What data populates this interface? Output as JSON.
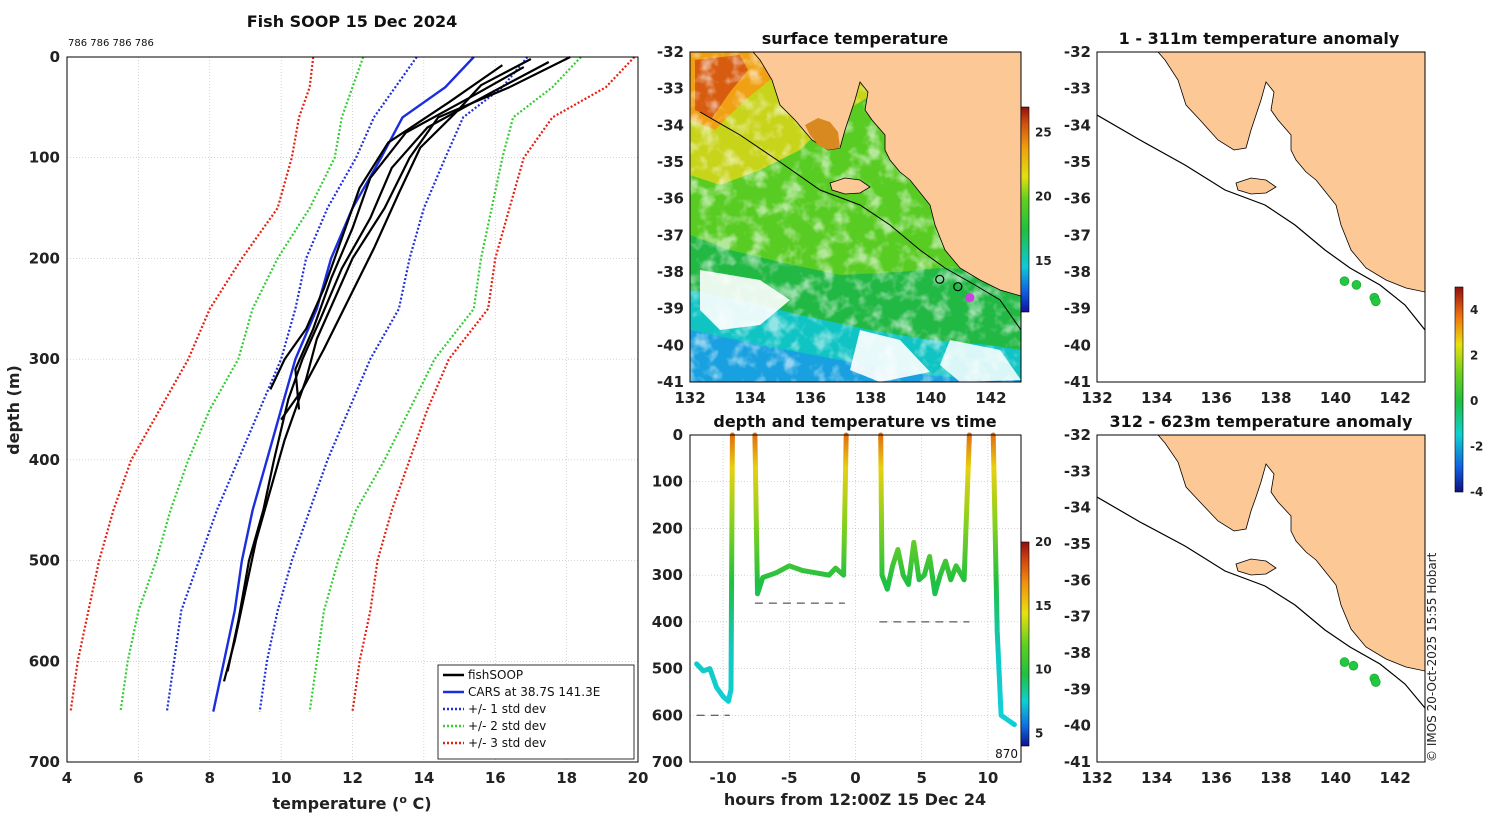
{
  "colors": {
    "fishsoop": "#000000",
    "cars": "#1a2ee0",
    "std1": "#1f2fd8",
    "std2": "#33cc33",
    "std3": "#e52010",
    "land": "#fbc896",
    "frame": "#000000"
  },
  "chart_data": [
    {
      "id": "profile",
      "type": "line",
      "title": "Fish SOOP 15 Dec 2024",
      "ids_label": "786 786 786 786",
      "xlabel": "temperature (",
      "xlabel_sup": "o",
      "xlabel_tail": " C)",
      "ylabel": "depth (m)",
      "xlim": [
        4,
        20
      ],
      "ylim": [
        0,
        700
      ],
      "xticks": [
        "4",
        "6",
        "8",
        "10",
        "12",
        "14",
        "16",
        "18",
        "20"
      ],
      "yticks": [
        "0",
        "100",
        "200",
        "300",
        "400",
        "500",
        "600",
        "700"
      ],
      "legend": [
        "fishSOOP",
        "CARS at 38.7S 141.3E",
        "+/- 1 std dev",
        "+/- 2 std dev",
        "+/- 3 std dev"
      ],
      "depths": [
        0,
        30,
        60,
        100,
        150,
        200,
        250,
        300,
        350,
        400,
        450,
        500,
        550,
        600,
        650
      ],
      "cars": [
        15.4,
        14.6,
        13.4,
        12.8,
        12.0,
        11.4,
        11.0,
        10.4,
        10.0,
        9.6,
        9.2,
        8.9,
        8.7,
        8.4,
        8.1
      ],
      "std1_lo": [
        13.8,
        13.2,
        12.6,
        12.1,
        11.3,
        10.7,
        10.4,
        10.0,
        9.4,
        8.8,
        8.2,
        7.7,
        7.2,
        7.0,
        6.8
      ],
      "std1_hi": [
        16.9,
        16.2,
        15.1,
        14.6,
        14.0,
        13.6,
        13.3,
        12.5,
        11.9,
        11.3,
        10.8,
        10.3,
        9.9,
        9.6,
        9.4
      ],
      "std2_lo": [
        12.3,
        12.0,
        11.7,
        11.5,
        10.8,
        9.9,
        9.2,
        8.8,
        8.0,
        7.4,
        6.9,
        6.5,
        6.0,
        5.7,
        5.5
      ],
      "std2_hi": [
        18.4,
        17.6,
        16.5,
        16.2,
        15.9,
        15.6,
        15.4,
        14.3,
        13.6,
        12.9,
        12.1,
        11.6,
        11.2,
        11.0,
        10.8
      ],
      "std3_lo": [
        10.9,
        10.8,
        10.5,
        10.3,
        9.9,
        8.9,
        8.0,
        7.4,
        6.6,
        5.8,
        5.3,
        4.9,
        4.6,
        4.3,
        4.1
      ],
      "std3_hi": [
        19.9,
        19.1,
        17.6,
        16.8,
        16.4,
        16.0,
        15.8,
        14.7,
        14.1,
        13.6,
        13.1,
        12.7,
        12.5,
        12.2,
        12.0
      ],
      "casts": [
        {
          "name": "cast-1",
          "points": [
            [
              18.1,
              0
            ],
            [
              16.4,
              30
            ],
            [
              14.4,
              60
            ],
            [
              13.6,
              100
            ],
            [
              12.9,
              150
            ],
            [
              12.0,
              200
            ],
            [
              11.5,
              240
            ],
            [
              11.0,
              280
            ],
            [
              10.7,
              320
            ],
            [
              10.1,
              380
            ],
            [
              9.7,
              430
            ],
            [
              9.3,
              480
            ],
            [
              9.0,
              530
            ],
            [
              8.7,
              580
            ],
            [
              8.4,
              620
            ]
          ]
        },
        {
          "name": "cast-2",
          "points": [
            [
              17.5,
              5
            ],
            [
              15.9,
              35
            ],
            [
              14.1,
              70
            ],
            [
              13.1,
              110
            ],
            [
              12.5,
              160
            ],
            [
              11.7,
              210
            ],
            [
              11.1,
              260
            ],
            [
              10.6,
              300
            ],
            [
              10.2,
              340
            ],
            [
              9.8,
              400
            ],
            [
              9.5,
              450
            ],
            [
              9.1,
              500
            ],
            [
              8.8,
              560
            ],
            [
              8.5,
              610
            ]
          ]
        },
        {
          "name": "cast-3",
          "points": [
            [
              16.8,
              10
            ],
            [
              15.3,
              40
            ],
            [
              13.5,
              75
            ],
            [
              12.5,
              120
            ],
            [
              12.0,
              170
            ],
            [
              11.4,
              220
            ],
            [
              10.9,
              270
            ],
            [
              10.4,
              310
            ],
            [
              10.5,
              350
            ]
          ]
        },
        {
          "name": "cast-4",
          "points": [
            [
              17.0,
              2
            ],
            [
              15.6,
              28
            ],
            [
              14.9,
              55
            ],
            [
              13.9,
              90
            ],
            [
              13.3,
              135
            ],
            [
              12.6,
              190
            ],
            [
              11.9,
              240
            ],
            [
              11.2,
              290
            ],
            [
              10.6,
              330
            ],
            [
              10.0,
              360
            ]
          ]
        },
        {
          "name": "cast-5",
          "points": [
            [
              16.2,
              8
            ],
            [
              14.7,
              45
            ],
            [
              13.0,
              85
            ],
            [
              12.2,
              130
            ],
            [
              11.7,
              180
            ],
            [
              11.2,
              230
            ],
            [
              10.7,
              270
            ],
            [
              10.1,
              300
            ],
            [
              9.7,
              330
            ]
          ]
        }
      ]
    },
    {
      "id": "surface",
      "type": "heatmap",
      "title": "surface temperature",
      "xlim": [
        132,
        143
      ],
      "ylim": [
        -41,
        -32
      ],
      "xticks": [
        "132",
        "134",
        "136",
        "138",
        "140",
        "142"
      ],
      "yticks": [
        "-32",
        "-33",
        "-34",
        "-35",
        "-36",
        "-37",
        "-38",
        "-39",
        "-40",
        "-41"
      ],
      "colorbar": {
        "min": 11,
        "max": 27,
        "ticks": [
          "15",
          "20",
          "25"
        ]
      },
      "stations": [
        [
          140.3,
          -38.2
        ],
        [
          140.9,
          -38.4
        ],
        [
          141.3,
          -38.7
        ]
      ]
    },
    {
      "id": "time",
      "type": "line",
      "title": "depth and temperature vs time",
      "xlabel": "hours from 12:00Z 15 Dec 24",
      "xlim": [
        -12.5,
        12.5
      ],
      "ylim": [
        0,
        700
      ],
      "xticks": [
        "-10",
        "-5",
        "0",
        "5",
        "10"
      ],
      "yticks": [
        "0",
        "100",
        "200",
        "300",
        "400",
        "500",
        "600",
        "700"
      ],
      "bottom_depth_label": "870",
      "colorbar": {
        "min": 4,
        "max": 20,
        "ticks": [
          "5",
          "10",
          "15",
          "20"
        ]
      },
      "segments": [
        [
          [
            -12.0,
            490
          ],
          [
            -11.5,
            505
          ],
          [
            -11.0,
            500
          ],
          [
            -10.5,
            540
          ],
          [
            -10.0,
            560
          ],
          [
            -9.6,
            570
          ],
          [
            -9.4,
            545
          ],
          [
            -9.3,
            0
          ]
        ],
        [
          [
            -7.6,
            0
          ],
          [
            -7.4,
            340
          ],
          [
            -7.0,
            305
          ],
          [
            -6.0,
            295
          ],
          [
            -5.0,
            280
          ],
          [
            -4.0,
            290
          ],
          [
            -3.0,
            295
          ],
          [
            -2.0,
            300
          ],
          [
            -1.5,
            285
          ],
          [
            -0.9,
            300
          ],
          [
            -0.7,
            0
          ]
        ],
        [
          [
            1.9,
            0
          ],
          [
            2.0,
            300
          ],
          [
            2.4,
            330
          ],
          [
            2.8,
            280
          ],
          [
            3.2,
            245
          ],
          [
            3.6,
            300
          ],
          [
            4.0,
            320
          ],
          [
            4.4,
            230
          ],
          [
            4.8,
            310
          ],
          [
            5.2,
            300
          ],
          [
            5.6,
            260
          ],
          [
            6.0,
            340
          ],
          [
            6.4,
            300
          ],
          [
            6.8,
            270
          ],
          [
            7.2,
            310
          ],
          [
            7.6,
            280
          ],
          [
            8.2,
            310
          ],
          [
            8.6,
            0
          ]
        ],
        [
          [
            10.4,
            0
          ],
          [
            10.7,
            420
          ],
          [
            11.0,
            600
          ],
          [
            11.5,
            610
          ],
          [
            12.0,
            620
          ]
        ]
      ],
      "bottom_lines": [
        {
          "x": [
            -12.0,
            -9.5
          ],
          "depth": 600
        },
        {
          "x": [
            -7.6,
            -0.8
          ],
          "depth": 360
        },
        {
          "x": [
            1.8,
            8.6
          ],
          "depth": 400
        }
      ]
    },
    {
      "id": "anom-shallow",
      "type": "scatter",
      "title": "1 - 311m temperature anomaly",
      "xlim": [
        132,
        143
      ],
      "ylim": [
        -41,
        -32
      ],
      "xticks": [
        "132",
        "134",
        "136",
        "138",
        "140",
        "142"
      ],
      "yticks": [
        "-32",
        "-33",
        "-34",
        "-35",
        "-36",
        "-37",
        "-38",
        "-39",
        "-40",
        "-41"
      ],
      "points": [
        [
          140.3,
          -38.25,
          0.4
        ],
        [
          140.7,
          -38.35,
          0.5
        ],
        [
          141.3,
          -38.7,
          0.3
        ],
        [
          141.35,
          -38.8,
          0.4
        ]
      ]
    },
    {
      "id": "anom-deep",
      "type": "scatter",
      "title": "312 - 623m temperature anomaly",
      "xlim": [
        132,
        143
      ],
      "ylim": [
        -41,
        -32
      ],
      "xticks": [
        "132",
        "134",
        "136",
        "138",
        "140",
        "142"
      ],
      "yticks": [
        "-32",
        "-33",
        "-34",
        "-35",
        "-36",
        "-37",
        "-38",
        "-39",
        "-40",
        "-41"
      ],
      "points": [
        [
          140.3,
          -38.25,
          0.4
        ],
        [
          140.6,
          -38.35,
          0.5
        ],
        [
          141.3,
          -38.7,
          0.3
        ],
        [
          141.35,
          -38.8,
          0.4
        ]
      ]
    }
  ],
  "anomaly_colorbar": {
    "min": -4,
    "max": 5,
    "ticks": [
      "4",
      "2",
      "0",
      "-2",
      "-4"
    ]
  },
  "credit": "© IMOS 20-Oct-2025 15:55 Hobart"
}
